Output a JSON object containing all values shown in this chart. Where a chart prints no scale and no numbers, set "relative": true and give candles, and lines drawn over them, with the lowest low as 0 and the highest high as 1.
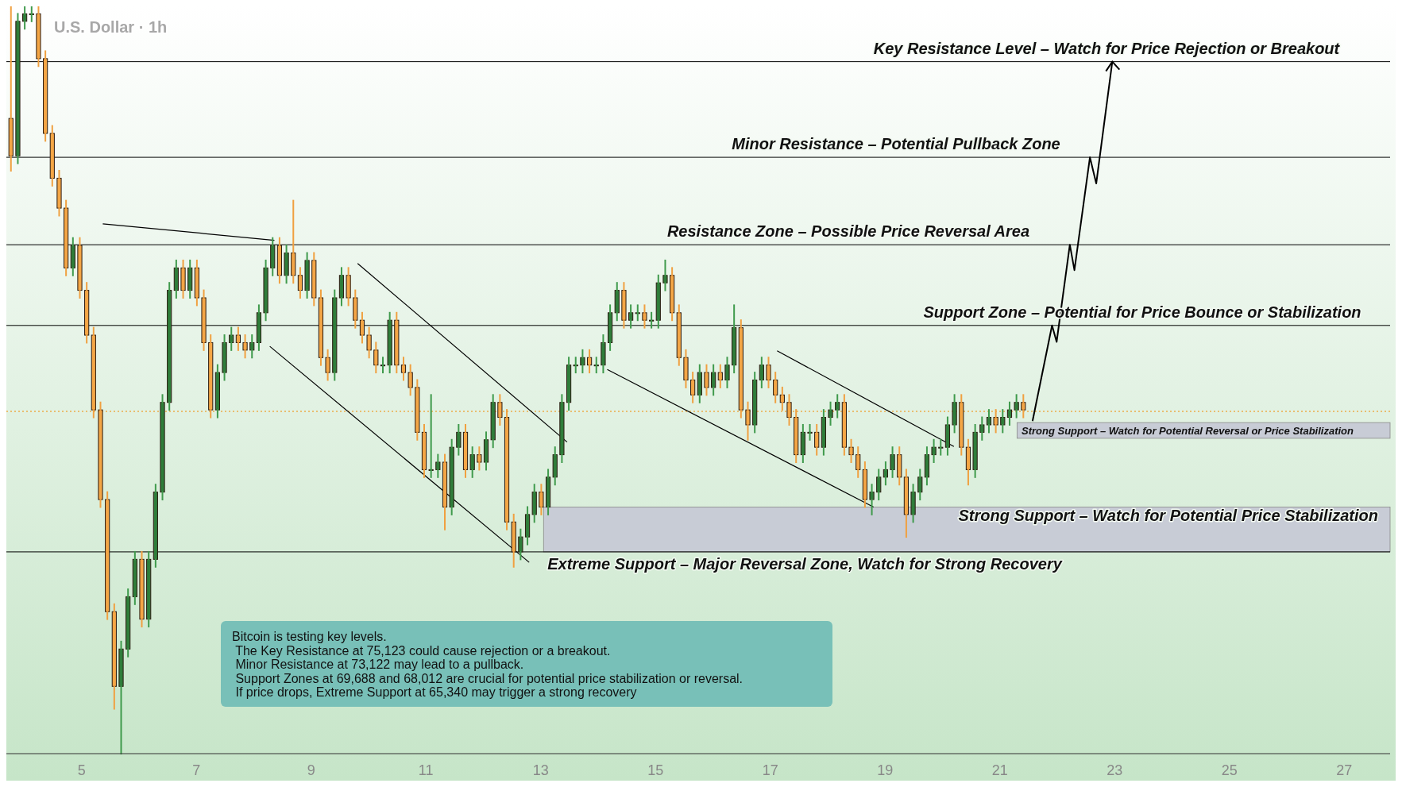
{
  "chart_data": {
    "type": "candlestick",
    "title": "U.S. Dollar · 1h",
    "relative": true,
    "tick_labels": "x",
    "xlim": [
      3.69,
      27.8
    ],
    "xticks": [
      5,
      7,
      9,
      11,
      13,
      15,
      17,
      19,
      21,
      23,
      25,
      27
    ],
    "x": [
      3.77,
      3.89,
      4.01,
      4.13,
      4.25,
      4.37,
      4.49,
      4.61,
      4.73,
      4.85,
      4.97,
      5.09,
      5.21,
      5.33,
      5.45,
      5.57,
      5.69,
      5.81,
      5.93,
      6.05,
      6.17,
      6.29,
      6.41,
      6.53,
      6.65,
      6.77,
      6.89,
      7.01,
      7.13,
      7.25,
      7.37,
      7.49,
      7.61,
      7.73,
      7.85,
      7.97,
      8.09,
      8.21,
      8.33,
      8.45,
      8.57,
      8.69,
      8.81,
      8.93,
      9.05,
      9.17,
      9.29,
      9.41,
      9.53,
      9.65,
      9.77,
      9.89,
      10.01,
      10.13,
      10.25,
      10.37,
      10.49,
      10.61,
      10.73,
      10.85,
      10.97,
      11.09,
      11.21,
      11.33,
      11.45,
      11.57,
      11.69,
      11.81,
      11.93,
      12.05,
      12.17,
      12.29,
      12.41,
      12.53,
      12.65,
      12.77,
      12.89,
      13.01,
      13.13,
      13.25,
      13.37,
      13.49,
      13.61,
      13.73,
      13.85,
      13.97,
      14.09,
      14.21,
      14.33,
      14.45,
      14.57,
      14.69,
      14.81,
      14.93,
      15.05,
      15.17,
      15.29,
      15.41,
      15.53,
      15.65,
      15.77,
      15.89,
      16.01,
      16.13,
      16.25,
      16.37,
      16.49,
      16.61,
      16.73,
      16.85,
      16.97,
      17.09,
      17.21,
      17.33,
      17.45,
      17.57,
      17.69,
      17.81,
      17.93,
      18.05,
      18.17,
      18.29,
      18.41,
      18.53,
      18.65,
      18.77,
      18.89,
      19.01,
      19.13,
      19.25,
      19.37,
      19.49,
      19.61,
      19.73,
      19.85,
      19.97,
      20.09,
      20.21,
      20.33,
      20.45,
      20.57,
      20.69,
      20.81,
      20.93,
      21.05,
      21.17,
      21.29,
      21.41
    ],
    "ohlc": [
      [
        0.85,
        1.0,
        0.78,
        0.8
      ],
      [
        0.8,
        0.99,
        0.79,
        0.98
      ],
      [
        0.98,
        1.0,
        0.97,
        0.99
      ],
      [
        0.99,
        1.0,
        0.98,
        0.99
      ],
      [
        0.99,
        1.0,
        0.92,
        0.93
      ],
      [
        0.93,
        0.94,
        0.82,
        0.83
      ],
      [
        0.83,
        0.84,
        0.76,
        0.77
      ],
      [
        0.77,
        0.78,
        0.72,
        0.73
      ],
      [
        0.73,
        0.74,
        0.64,
        0.65
      ],
      [
        0.65,
        0.69,
        0.64,
        0.68
      ],
      [
        0.68,
        0.69,
        0.61,
        0.62
      ],
      [
        0.62,
        0.63,
        0.55,
        0.56
      ],
      [
        0.56,
        0.57,
        0.45,
        0.46
      ],
      [
        0.46,
        0.47,
        0.33,
        0.34
      ],
      [
        0.34,
        0.35,
        0.18,
        0.19
      ],
      [
        0.19,
        0.2,
        0.06,
        0.09
      ],
      [
        0.09,
        0.15,
        0.0,
        0.14
      ],
      [
        0.14,
        0.22,
        0.13,
        0.21
      ],
      [
        0.21,
        0.27,
        0.2,
        0.26
      ],
      [
        0.26,
        0.27,
        0.17,
        0.18
      ],
      [
        0.18,
        0.27,
        0.17,
        0.26
      ],
      [
        0.26,
        0.36,
        0.25,
        0.35
      ],
      [
        0.35,
        0.48,
        0.34,
        0.47
      ],
      [
        0.47,
        0.63,
        0.46,
        0.62
      ],
      [
        0.62,
        0.66,
        0.61,
        0.65
      ],
      [
        0.65,
        0.66,
        0.61,
        0.62
      ],
      [
        0.62,
        0.66,
        0.61,
        0.65
      ],
      [
        0.65,
        0.66,
        0.6,
        0.61
      ],
      [
        0.61,
        0.62,
        0.54,
        0.55
      ],
      [
        0.55,
        0.56,
        0.45,
        0.46
      ],
      [
        0.46,
        0.52,
        0.45,
        0.51
      ],
      [
        0.51,
        0.56,
        0.5,
        0.55
      ],
      [
        0.55,
        0.57,
        0.54,
        0.56
      ],
      [
        0.56,
        0.57,
        0.54,
        0.55
      ],
      [
        0.55,
        0.56,
        0.53,
        0.54
      ],
      [
        0.54,
        0.56,
        0.53,
        0.55
      ],
      [
        0.55,
        0.6,
        0.54,
        0.59
      ],
      [
        0.59,
        0.66,
        0.58,
        0.65
      ],
      [
        0.65,
        0.69,
        0.64,
        0.68
      ],
      [
        0.68,
        0.69,
        0.63,
        0.64
      ],
      [
        0.64,
        0.68,
        0.63,
        0.67
      ],
      [
        0.67,
        0.74,
        0.63,
        0.64
      ],
      [
        0.64,
        0.65,
        0.61,
        0.62
      ],
      [
        0.62,
        0.67,
        0.61,
        0.66
      ],
      [
        0.66,
        0.67,
        0.6,
        0.61
      ],
      [
        0.61,
        0.62,
        0.52,
        0.53
      ],
      [
        0.53,
        0.54,
        0.5,
        0.51
      ],
      [
        0.51,
        0.62,
        0.5,
        0.61
      ],
      [
        0.61,
        0.65,
        0.6,
        0.64
      ],
      [
        0.64,
        0.65,
        0.6,
        0.61
      ],
      [
        0.61,
        0.62,
        0.57,
        0.58
      ],
      [
        0.58,
        0.59,
        0.55,
        0.56
      ],
      [
        0.56,
        0.57,
        0.53,
        0.54
      ],
      [
        0.54,
        0.55,
        0.51,
        0.52
      ],
      [
        0.52,
        0.53,
        0.51,
        0.52
      ],
      [
        0.52,
        0.59,
        0.51,
        0.58
      ],
      [
        0.58,
        0.59,
        0.51,
        0.52
      ],
      [
        0.52,
        0.53,
        0.5,
        0.51
      ],
      [
        0.51,
        0.52,
        0.48,
        0.49
      ],
      [
        0.49,
        0.5,
        0.42,
        0.43
      ],
      [
        0.43,
        0.44,
        0.37,
        0.38
      ],
      [
        0.38,
        0.48,
        0.37,
        0.38
      ],
      [
        0.38,
        0.4,
        0.37,
        0.39
      ],
      [
        0.39,
        0.4,
        0.3,
        0.33
      ],
      [
        0.33,
        0.42,
        0.32,
        0.41
      ],
      [
        0.41,
        0.44,
        0.4,
        0.43
      ],
      [
        0.43,
        0.44,
        0.37,
        0.38
      ],
      [
        0.38,
        0.41,
        0.37,
        0.4
      ],
      [
        0.4,
        0.41,
        0.38,
        0.39
      ],
      [
        0.39,
        0.43,
        0.38,
        0.42
      ],
      [
        0.42,
        0.48,
        0.41,
        0.47
      ],
      [
        0.47,
        0.48,
        0.44,
        0.45
      ],
      [
        0.45,
        0.46,
        0.3,
        0.31
      ],
      [
        0.31,
        0.32,
        0.25,
        0.27
      ],
      [
        0.27,
        0.3,
        0.26,
        0.29
      ],
      [
        0.29,
        0.33,
        0.28,
        0.32
      ],
      [
        0.32,
        0.36,
        0.31,
        0.35
      ],
      [
        0.35,
        0.36,
        0.32,
        0.33
      ],
      [
        0.33,
        0.38,
        0.32,
        0.37
      ],
      [
        0.37,
        0.41,
        0.36,
        0.4
      ],
      [
        0.4,
        0.48,
        0.39,
        0.47
      ],
      [
        0.47,
        0.53,
        0.46,
        0.52
      ],
      [
        0.52,
        0.53,
        0.51,
        0.52
      ],
      [
        0.52,
        0.54,
        0.51,
        0.53
      ],
      [
        0.53,
        0.54,
        0.51,
        0.52
      ],
      [
        0.52,
        0.53,
        0.51,
        0.52
      ],
      [
        0.52,
        0.56,
        0.51,
        0.55
      ],
      [
        0.55,
        0.6,
        0.54,
        0.59
      ],
      [
        0.59,
        0.63,
        0.58,
        0.62
      ],
      [
        0.62,
        0.63,
        0.57,
        0.58
      ],
      [
        0.58,
        0.6,
        0.57,
        0.59
      ],
      [
        0.59,
        0.6,
        0.58,
        0.59
      ],
      [
        0.59,
        0.6,
        0.57,
        0.58
      ],
      [
        0.58,
        0.59,
        0.57,
        0.58
      ],
      [
        0.58,
        0.64,
        0.57,
        0.63
      ],
      [
        0.63,
        0.66,
        0.62,
        0.64
      ],
      [
        0.64,
        0.65,
        0.58,
        0.59
      ],
      [
        0.59,
        0.6,
        0.52,
        0.53
      ],
      [
        0.53,
        0.54,
        0.49,
        0.5
      ],
      [
        0.5,
        0.51,
        0.47,
        0.48
      ],
      [
        0.48,
        0.52,
        0.47,
        0.51
      ],
      [
        0.51,
        0.52,
        0.48,
        0.49
      ],
      [
        0.49,
        0.52,
        0.48,
        0.51
      ],
      [
        0.51,
        0.52,
        0.49,
        0.5
      ],
      [
        0.5,
        0.53,
        0.49,
        0.52
      ],
      [
        0.52,
        0.6,
        0.51,
        0.57
      ],
      [
        0.57,
        0.58,
        0.45,
        0.46
      ],
      [
        0.46,
        0.47,
        0.42,
        0.44
      ],
      [
        0.44,
        0.51,
        0.43,
        0.5
      ],
      [
        0.5,
        0.53,
        0.49,
        0.52
      ],
      [
        0.52,
        0.53,
        0.49,
        0.5
      ],
      [
        0.5,
        0.51,
        0.47,
        0.48
      ],
      [
        0.48,
        0.49,
        0.46,
        0.47
      ],
      [
        0.47,
        0.48,
        0.44,
        0.45
      ],
      [
        0.45,
        0.46,
        0.39,
        0.4
      ],
      [
        0.4,
        0.44,
        0.39,
        0.43
      ],
      [
        0.43,
        0.44,
        0.42,
        0.43
      ],
      [
        0.43,
        0.44,
        0.4,
        0.41
      ],
      [
        0.41,
        0.46,
        0.4,
        0.45
      ],
      [
        0.45,
        0.47,
        0.44,
        0.46
      ],
      [
        0.46,
        0.48,
        0.45,
        0.47
      ],
      [
        0.47,
        0.48,
        0.4,
        0.41
      ],
      [
        0.41,
        0.42,
        0.39,
        0.4
      ],
      [
        0.4,
        0.41,
        0.37,
        0.38
      ],
      [
        0.38,
        0.39,
        0.33,
        0.34
      ],
      [
        0.34,
        0.36,
        0.32,
        0.35
      ],
      [
        0.35,
        0.38,
        0.34,
        0.37
      ],
      [
        0.37,
        0.39,
        0.36,
        0.38
      ],
      [
        0.38,
        0.41,
        0.37,
        0.4
      ],
      [
        0.4,
        0.41,
        0.36,
        0.37
      ],
      [
        0.37,
        0.38,
        0.29,
        0.32
      ],
      [
        0.32,
        0.36,
        0.31,
        0.35
      ],
      [
        0.35,
        0.38,
        0.34,
        0.37
      ],
      [
        0.37,
        0.41,
        0.36,
        0.4
      ],
      [
        0.4,
        0.42,
        0.39,
        0.41
      ],
      [
        0.41,
        0.42,
        0.4,
        0.41
      ],
      [
        0.41,
        0.45,
        0.4,
        0.44
      ],
      [
        0.44,
        0.48,
        0.43,
        0.47
      ],
      [
        0.47,
        0.48,
        0.4,
        0.41
      ],
      [
        0.41,
        0.42,
        0.36,
        0.38
      ],
      [
        0.38,
        0.44,
        0.37,
        0.43
      ],
      [
        0.43,
        0.45,
        0.42,
        0.44
      ],
      [
        0.44,
        0.46,
        0.43,
        0.45
      ],
      [
        0.45,
        0.46,
        0.43,
        0.44
      ],
      [
        0.44,
        0.46,
        0.43,
        0.45
      ],
      [
        0.45,
        0.47,
        0.44,
        0.46
      ],
      [
        0.46,
        0.48,
        0.45,
        0.47
      ],
      [
        0.47,
        0.48,
        0.45,
        0.46
      ]
    ],
    "series": [
      {
        "type": "line",
        "color": "#000000",
        "x": [
          21.57,
          21.91,
          21.99,
          22.22,
          22.3,
          22.57,
          22.68,
          22.96
        ],
        "values": [
          0.445,
          0.573,
          0.551,
          0.681,
          0.647,
          0.798,
          0.763,
          0.926
        ]
      },
      {
        "type": "line",
        "color": "#000000",
        "x": [
          5.37,
          8.36
        ],
        "values": [
          0.709,
          0.687
        ]
      },
      {
        "type": "line",
        "color": "#000000",
        "x": [
          8.28,
          12.8
        ],
        "values": [
          0.545,
          0.256
        ]
      },
      {
        "type": "line",
        "color": "#000000",
        "x": [
          9.81,
          13.46
        ],
        "values": [
          0.656,
          0.417
        ]
      },
      {
        "type": "line",
        "color": "#000000",
        "x": [
          14.16,
          18.8
        ],
        "values": [
          0.514,
          0.33
        ]
      },
      {
        "type": "line",
        "color": "#000000",
        "x": [
          17.12,
          20.2
        ],
        "values": [
          0.539,
          0.411
        ]
      }
    ],
    "ref_lines": [
      {
        "axis": "y",
        "value": 0.926,
        "label": "Key Resistance Level – Watch for Price Rejection or Breakout",
        "color": "#000000"
      },
      {
        "axis": "y",
        "value": 0.798,
        "label": "Minor Resistance – Potential Pullback Zone",
        "color": "#000000"
      },
      {
        "axis": "y",
        "value": 0.681,
        "label": "Resistance Zone – Possible Price Reversal Area",
        "color": "#000000"
      },
      {
        "axis": "y",
        "value": 0.573,
        "label": "Support Zone – Potential for Price Bounce or Stabilization",
        "color": "#000000"
      },
      {
        "axis": "y",
        "value": 0.458,
        "color": "#f08c00",
        "line_style": "dotted"
      },
      {
        "axis": "y",
        "value": 0.27,
        "label": "Extreme Support – Major Reversal Zone, Watch for Strong Recovery",
        "color": "#000000"
      }
    ],
    "bands": [
      {
        "axis": "y",
        "from": 0.422,
        "to": 0.443,
        "label": "Strong Support – Watch for Potential Reversal or Price Stabilization",
        "color": "#c8ccd6"
      },
      {
        "axis": "y",
        "from": 0.27,
        "to": 0.33,
        "label": "Strong Support – Watch for Potential Price Stabilization",
        "color": "#c8ccd6"
      }
    ],
    "annotations": [
      "Bitcoin is testing key levels.\n The Key Resistance at 75,123 could cause rejection or a breakout.\n Minor Resistance at 73,122 may lead to a pullback.\n Support Zones at 69,688 and 68,012 are crucial for potential price stabilization or reversal.\n If price drops, Extreme Support at 65,340 may trigger a strong recovery"
    ]
  }
}
